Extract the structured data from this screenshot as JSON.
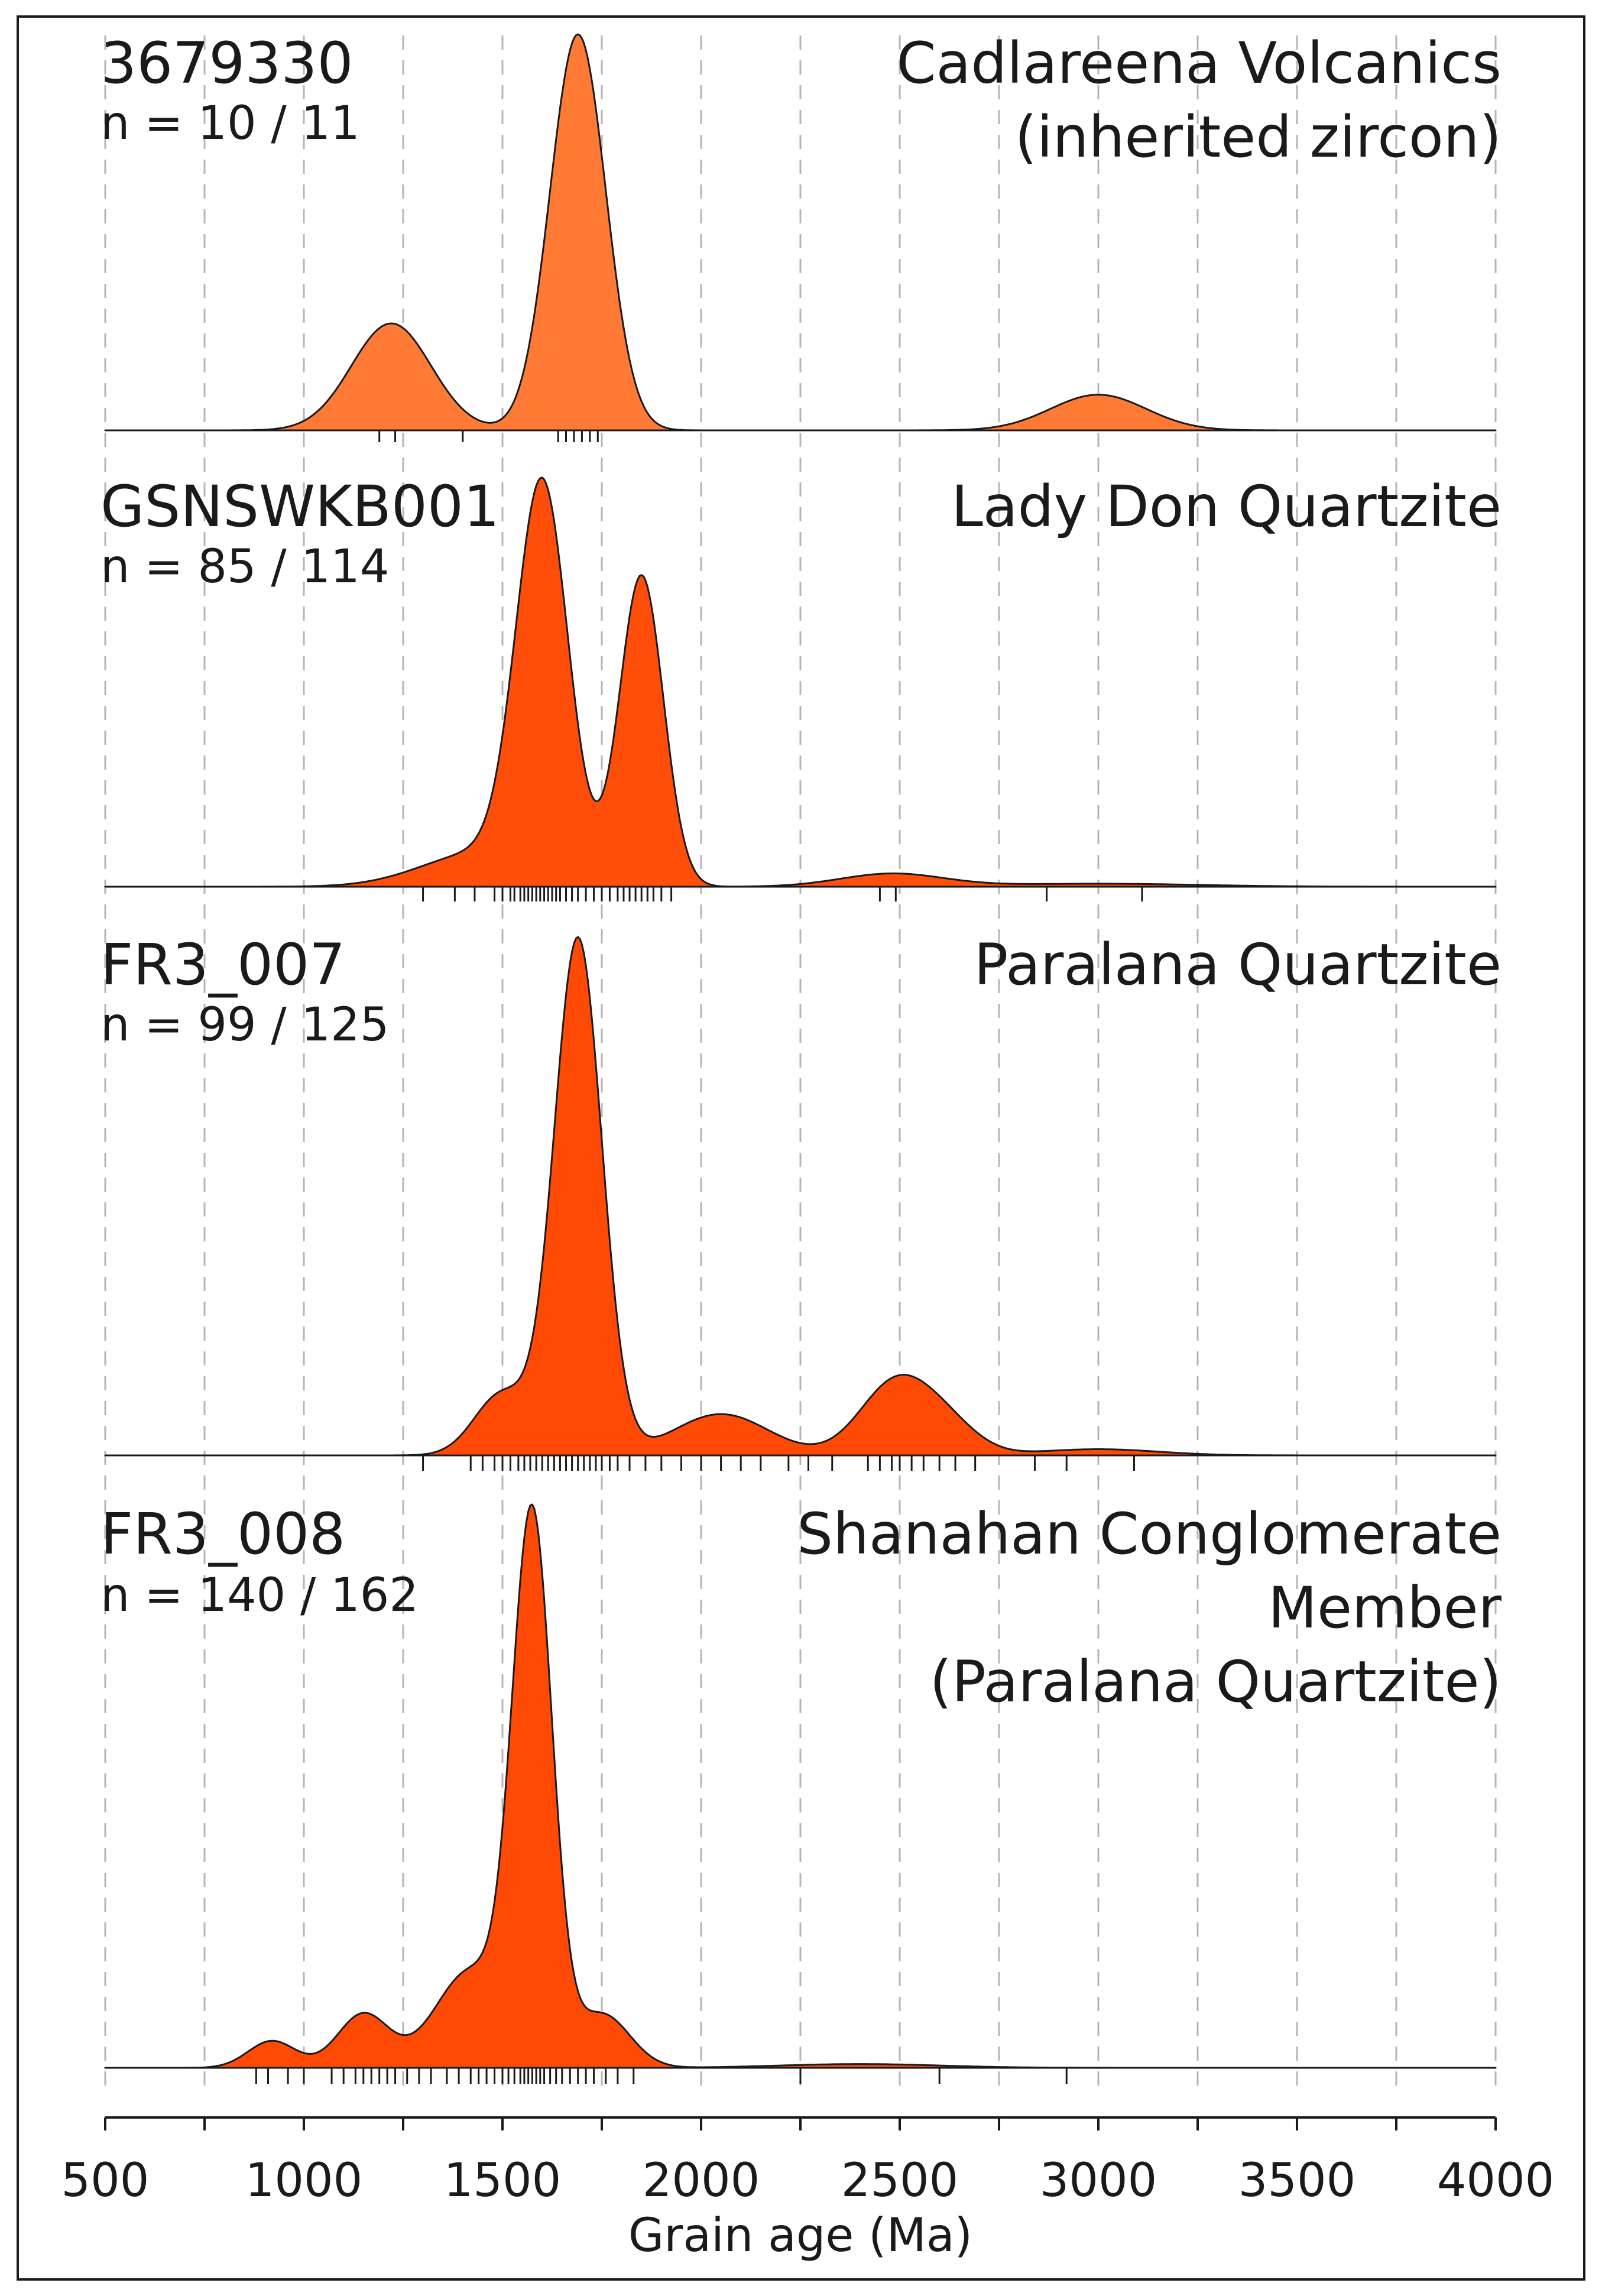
{
  "chart_data": {
    "type": "area",
    "subtype": "kernel density estimate with rug plot",
    "xlabel": "Grain age (Ma)",
    "xlim": [
      500,
      4000
    ],
    "xticks": [
      500,
      1000,
      1500,
      2000,
      2500,
      3000,
      3500,
      4000
    ],
    "grid": "vertical dashed lines every 250 Ma",
    "panels": [
      {
        "sample_id": "3679330",
        "n_label": "n = 10 / 11",
        "unit_lines": [
          "Cadlareena Volcanics",
          "(inherited zircon)"
        ],
        "color": "#ff7a35",
        "peaks": [
          {
            "age": 1220,
            "sigma": 100,
            "height": 0.27
          },
          {
            "age": 1690,
            "sigma": 70,
            "height": 1.0
          },
          {
            "age": 3000,
            "sigma": 120,
            "height": 0.09
          }
        ],
        "rug": [
          1190,
          1230,
          1400,
          1640,
          1660,
          1680,
          1700,
          1720,
          1740
        ]
      },
      {
        "sample_id": "GSNSWKB001",
        "n_label": "n = 85 / 114",
        "unit_lines": [
          "Lady Don Quartzite"
        ],
        "color": "#ff4d0a",
        "peaks": [
          {
            "age": 1450,
            "sigma": 150,
            "height": 0.08
          },
          {
            "age": 1600,
            "sigma": 65,
            "height": 0.9
          },
          {
            "age": 1850,
            "sigma": 55,
            "height": 0.72
          },
          {
            "age": 2480,
            "sigma": 130,
            "height": 0.03
          },
          {
            "age": 3000,
            "sigma": 250,
            "height": 0.007
          }
        ],
        "rug": [
          1300,
          1380,
          1430,
          1480,
          1500,
          1520,
          1530,
          1545,
          1555,
          1565,
          1575,
          1585,
          1595,
          1605,
          1615,
          1625,
          1635,
          1645,
          1660,
          1675,
          1690,
          1710,
          1730,
          1750,
          1770,
          1790,
          1805,
          1820,
          1835,
          1850,
          1865,
          1880,
          1900,
          1925,
          2450,
          2490,
          2870,
          3110
        ]
      },
      {
        "sample_id": "FR3_007",
        "n_label": "n = 99 / 125",
        "unit_lines": [
          "Paralana Quartzite"
        ],
        "color": "#ff4a06",
        "peaks": [
          {
            "age": 1500,
            "sigma": 70,
            "height": 0.12
          },
          {
            "age": 1690,
            "sigma": 60,
            "height": 1.0
          },
          {
            "age": 2050,
            "sigma": 120,
            "height": 0.08
          },
          {
            "age": 2490,
            "sigma": 90,
            "height": 0.14
          },
          {
            "age": 2620,
            "sigma": 80,
            "height": 0.05
          },
          {
            "age": 3000,
            "sigma": 150,
            "height": 0.012
          }
        ],
        "rug": [
          1300,
          1420,
          1450,
          1480,
          1500,
          1520,
          1540,
          1555,
          1570,
          1585,
          1600,
          1615,
          1630,
          1645,
          1660,
          1675,
          1690,
          1705,
          1720,
          1735,
          1750,
          1770,
          1790,
          1820,
          1860,
          1900,
          1950,
          2000,
          2050,
          2100,
          2150,
          2220,
          2270,
          2330,
          2420,
          2450,
          2480,
          2500,
          2530,
          2560,
          2600,
          2640,
          2690,
          2840,
          2920,
          3090
        ]
      },
      {
        "sample_id": "FR3_008",
        "n_label": "n = 140 / 162",
        "unit_lines": [
          "Shanahan Conglomerate",
          "Member",
          "(Paralana Quartzite)"
        ],
        "color": "#ff4a06",
        "peaks": [
          {
            "age": 920,
            "sigma": 60,
            "height": 0.05
          },
          {
            "age": 1150,
            "sigma": 65,
            "height": 0.1
          },
          {
            "age": 1420,
            "sigma": 90,
            "height": 0.18
          },
          {
            "age": 1575,
            "sigma": 50,
            "height": 1.0
          },
          {
            "age": 1750,
            "sigma": 70,
            "height": 0.1
          },
          {
            "age": 2400,
            "sigma": 200,
            "height": 0.007
          }
        ],
        "rug": [
          880,
          910,
          960,
          1000,
          1070,
          1100,
          1130,
          1150,
          1170,
          1190,
          1210,
          1230,
          1260,
          1290,
          1320,
          1360,
          1390,
          1420,
          1440,
          1460,
          1480,
          1500,
          1515,
          1530,
          1545,
          1555,
          1565,
          1575,
          1585,
          1595,
          1605,
          1620,
          1635,
          1650,
          1670,
          1690,
          1710,
          1730,
          1760,
          1790,
          1830,
          2250,
          2600,
          2920
        ]
      }
    ]
  }
}
